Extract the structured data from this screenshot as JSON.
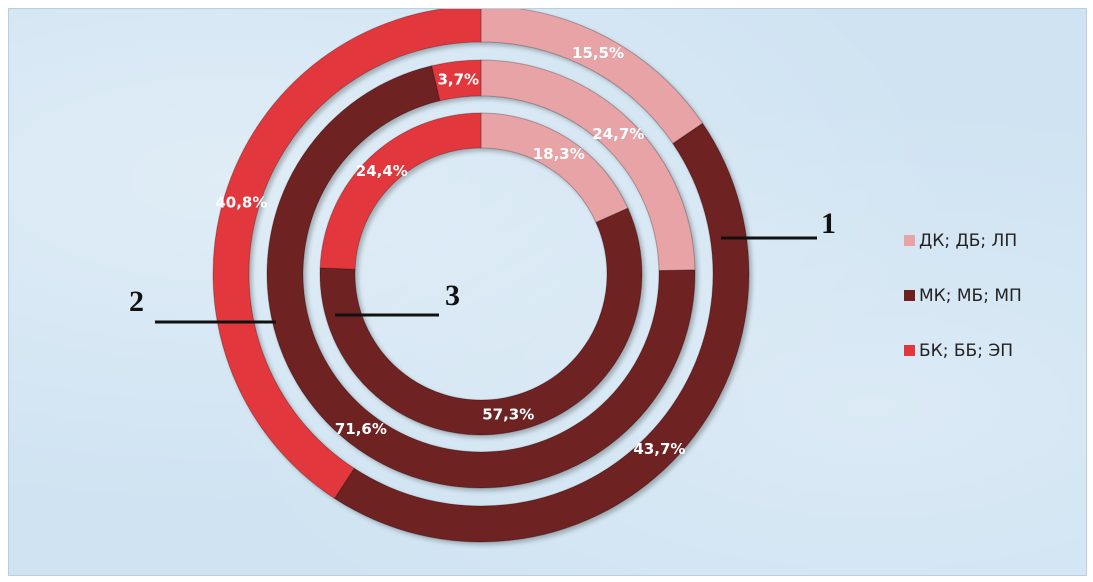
{
  "chart_data": {
    "type": "donut",
    "rings": [
      {
        "name": "1",
        "values": [
          15.5,
          43.7,
          40.8
        ],
        "labels": [
          "15,5%",
          "43,7%",
          "40,8%"
        ]
      },
      {
        "name": "2",
        "values": [
          24.7,
          71.6,
          3.7
        ],
        "labels": [
          "24,7%",
          "71,6%",
          "3,7%"
        ]
      },
      {
        "name": "3",
        "values": [
          18.3,
          57.3,
          24.4
        ],
        "labels": [
          "18,3%",
          "57,3%",
          "24,4%"
        ]
      }
    ],
    "categories": [
      "ДК; ДБ; ЛП",
      "МК; МБ; МП",
      "БК; ББ; ЭП"
    ],
    "colors": [
      "#e7a3a6",
      "#6e2020",
      "#e2373c"
    ],
    "legend_position": "right"
  }
}
